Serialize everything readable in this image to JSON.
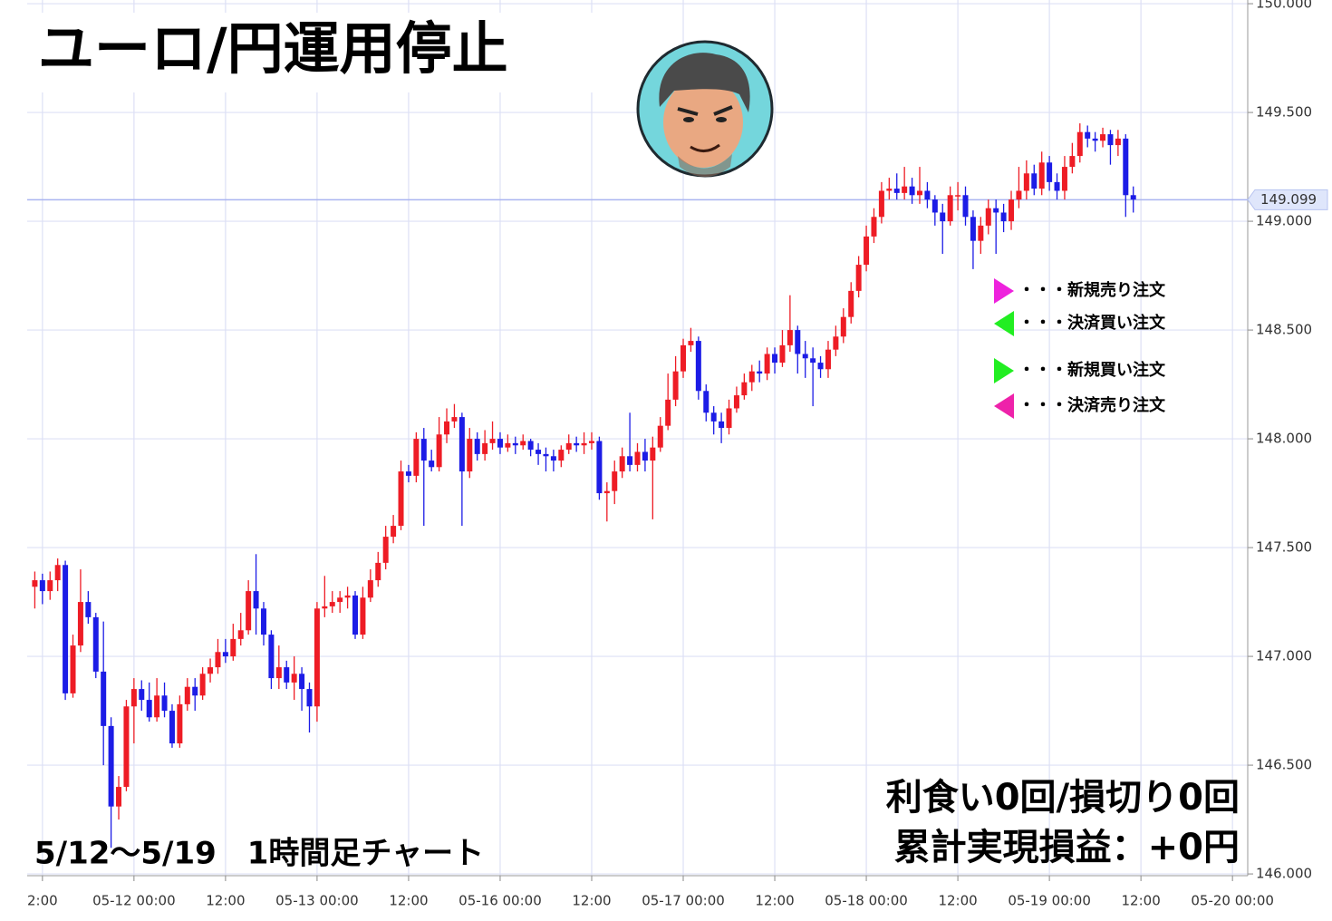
{
  "chart_data": {
    "type": "candlestick",
    "title": "ユーロ/円運用停止",
    "subtitle": "5/12～5/19　1時間足チャート",
    "summary": [
      "利食い0回/損切り0回",
      "累計実現損益：+0円"
    ],
    "legend_notes": [
      {
        "label": "・・・新規売り注文",
        "color": "#ee22dd",
        "direction": "right"
      },
      {
        "label": "・・・決済買い注文",
        "color": "#22ee22",
        "direction": "left"
      },
      {
        "label": "・・・新規買い注文",
        "color": "#22ee22",
        "direction": "right"
      },
      {
        "label": "・・・決済売り注文",
        "color": "#ee22aa",
        "direction": "left"
      }
    ],
    "up_color": "#ee1c25",
    "down_color": "#1c1ce6",
    "grid": true,
    "xlim": [
      -14,
      146
    ],
    "ylim": [
      145.992,
      150.017
    ],
    "xticks": [
      {
        "value": -12,
        "label": "2:00"
      },
      {
        "value": 0,
        "label": "05-12 00:00"
      },
      {
        "value": 12,
        "label": "12:00"
      },
      {
        "value": 24,
        "label": "05-13 00:00"
      },
      {
        "value": 36,
        "label": "12:00"
      },
      {
        "value": 48,
        "label": "05-16 00:00"
      },
      {
        "value": 60,
        "label": "12:00"
      },
      {
        "value": 72,
        "label": "05-17 00:00"
      },
      {
        "value": 84,
        "label": "12:00"
      },
      {
        "value": 96,
        "label": "05-18 00:00"
      },
      {
        "value": 108,
        "label": "12:00"
      },
      {
        "value": 120,
        "label": "05-19 00:00"
      },
      {
        "value": 132,
        "label": "12:00"
      },
      {
        "value": 144,
        "label": "05-20 00:00"
      }
    ],
    "yticks": [
      {
        "value": 146,
        "label": "146.000"
      },
      {
        "value": 146.5,
        "label": "146.500"
      },
      {
        "value": 147,
        "label": "147.000"
      },
      {
        "value": 147.5,
        "label": "147.500"
      },
      {
        "value": 148,
        "label": "148.000"
      },
      {
        "value": 148.5,
        "label": "148.500"
      },
      {
        "value": 149,
        "label": "149.000"
      },
      {
        "value": 149.5,
        "label": "149.500"
      },
      {
        "value": 150,
        "label": "150.000"
      }
    ],
    "last_price": {
      "value": 149.099,
      "label": "149.099"
    },
    "x": [
      -13,
      -12,
      -11,
      -10,
      -9,
      -8,
      -7,
      -6,
      -5,
      -4,
      -3,
      -2,
      -1,
      0,
      1,
      2,
      3,
      4,
      5,
      6,
      7,
      8,
      9,
      10,
      11,
      12,
      13,
      14,
      15,
      16,
      17,
      18,
      19,
      20,
      21,
      22,
      23,
      24,
      25,
      26,
      27,
      28,
      29,
      30,
      31,
      32,
      33,
      34,
      35,
      36,
      37,
      38,
      39,
      40,
      41,
      42,
      43,
      44,
      45,
      46,
      47,
      48,
      49,
      50,
      51,
      52,
      53,
      54,
      55,
      56,
      57,
      58,
      59,
      60,
      61,
      62,
      63,
      64,
      65,
      66,
      67,
      68,
      69,
      70,
      71,
      72,
      73,
      74,
      75,
      76,
      77,
      78,
      79,
      80,
      81,
      82,
      83,
      84,
      85,
      86,
      87,
      88,
      89,
      90,
      91,
      92,
      93,
      94,
      95,
      96,
      97,
      98,
      99,
      100,
      101,
      102,
      103,
      104,
      105,
      106,
      107,
      108,
      109,
      110,
      111,
      112,
      113,
      114,
      115,
      116,
      117,
      118,
      119,
      120,
      121,
      122,
      123,
      124,
      125,
      126,
      127,
      128,
      129,
      130,
      131
    ],
    "open": [
      147.32,
      147.35,
      147.3,
      147.35,
      147.42,
      146.83,
      147.05,
      147.25,
      147.18,
      146.93,
      146.68,
      146.31,
      146.4,
      146.77,
      146.85,
      146.8,
      146.72,
      146.82,
      146.75,
      146.6,
      146.78,
      146.86,
      146.82,
      146.92,
      146.95,
      147.02,
      147.0,
      147.08,
      147.12,
      147.3,
      147.22,
      147.1,
      146.9,
      146.95,
      146.88,
      146.92,
      146.85,
      146.77,
      147.22,
      147.23,
      147.25,
      147.27,
      147.28,
      147.1,
      147.27,
      147.35,
      147.43,
      147.55,
      147.6,
      147.85,
      147.83,
      148.0,
      147.9,
      147.87,
      148.02,
      148.08,
      148.1,
      147.85,
      148.0,
      147.93,
      147.98,
      148.0,
      147.96,
      147.98,
      147.97,
      147.99,
      147.95,
      147.93,
      147.92,
      147.9,
      147.95,
      147.98,
      147.97,
      147.98,
      147.99,
      147.75,
      147.76,
      147.85,
      147.92,
      147.88,
      147.94,
      147.9,
      147.96,
      148.06,
      148.18,
      148.31,
      148.43,
      148.45,
      148.22,
      148.12,
      148.08,
      148.05,
      148.14,
      148.2,
      148.26,
      148.31,
      148.3,
      148.39,
      148.35,
      148.43,
      148.5,
      148.39,
      148.37,
      148.35,
      148.32,
      148.41,
      148.47,
      148.56,
      148.68,
      148.8,
      148.93,
      149.02,
      149.14,
      149.15,
      149.13,
      149.16,
      149.12,
      149.14,
      149.1,
      149.04,
      149.0,
      149.12,
      149.12,
      149.02,
      148.91,
      148.98,
      149.06,
      149.04,
      149.0,
      149.1,
      149.14,
      149.22,
      149.15,
      149.27,
      149.18,
      149.14,
      149.25,
      149.3,
      149.41,
      149.38,
      149.37,
      149.4,
      149.35,
      149.38,
      149.12
    ],
    "high": [
      147.39,
      147.38,
      147.39,
      147.45,
      147.44,
      147.1,
      147.4,
      147.3,
      147.2,
      147.16,
      146.72,
      146.45,
      146.8,
      146.9,
      146.89,
      146.88,
      146.9,
      146.88,
      146.78,
      146.82,
      146.9,
      146.9,
      146.95,
      146.99,
      147.08,
      147.08,
      147.15,
      147.2,
      147.35,
      147.47,
      147.25,
      147.12,
      147.05,
      146.98,
      147.0,
      146.95,
      146.88,
      147.25,
      147.37,
      147.3,
      147.3,
      147.32,
      147.3,
      147.32,
      147.4,
      147.48,
      147.6,
      147.65,
      147.9,
      147.88,
      148.03,
      148.05,
      147.95,
      148.1,
      148.14,
      148.16,
      148.12,
      148.05,
      148.03,
      148.04,
      148.08,
      148.03,
      148.02,
      148.01,
      148.02,
      148.0,
      147.98,
      147.96,
      147.95,
      147.97,
      148.02,
      148.01,
      148.03,
      148.03,
      148.01,
      147.8,
      147.9,
      147.96,
      148.12,
      147.98,
      148.0,
      148.01,
      148.1,
      148.3,
      148.38,
      148.46,
      148.51,
      148.47,
      148.25,
      148.15,
      148.12,
      148.18,
      148.24,
      148.3,
      148.34,
      148.36,
      148.42,
      148.42,
      148.5,
      148.66,
      148.52,
      148.45,
      148.42,
      148.38,
      148.45,
      148.52,
      148.6,
      148.72,
      148.84,
      148.98,
      149.06,
      149.18,
      149.2,
      149.22,
      149.25,
      149.2,
      149.25,
      149.18,
      149.12,
      149.08,
      149.16,
      149.18,
      149.16,
      149.05,
      149.02,
      149.1,
      149.1,
      149.08,
      149.14,
      149.25,
      149.28,
      149.26,
      149.32,
      149.3,
      149.22,
      149.3,
      149.36,
      149.45,
      149.44,
      149.41,
      149.43,
      149.42,
      149.42,
      149.4,
      149.16
    ],
    "low": [
      147.22,
      147.24,
      147.26,
      147.3,
      146.8,
      146.81,
      147.02,
      147.15,
      146.9,
      146.5,
      146.12,
      146.25,
      146.38,
      146.6,
      146.75,
      146.7,
      146.7,
      146.72,
      146.58,
      146.58,
      146.75,
      146.75,
      146.8,
      146.88,
      146.92,
      146.97,
      146.98,
      147.05,
      147.1,
      147.1,
      147.05,
      146.85,
      146.85,
      146.85,
      146.8,
      146.75,
      146.65,
      146.7,
      147.18,
      147.2,
      147.2,
      147.22,
      147.08,
      147.08,
      147.25,
      147.32,
      147.4,
      147.52,
      147.58,
      147.8,
      147.8,
      147.6,
      147.85,
      147.85,
      147.98,
      148.05,
      147.6,
      147.82,
      147.9,
      147.9,
      147.95,
      147.93,
      147.94,
      147.93,
      147.95,
      147.92,
      147.88,
      147.85,
      147.85,
      147.87,
      147.93,
      147.94,
      147.93,
      147.95,
      147.72,
      147.62,
      147.7,
      147.82,
      147.85,
      147.85,
      147.85,
      147.63,
      147.94,
      148.04,
      148.15,
      148.28,
      148.4,
      148.18,
      148.08,
      148.02,
      147.98,
      148.02,
      148.12,
      148.18,
      148.22,
      148.26,
      148.27,
      148.3,
      148.33,
      148.4,
      148.3,
      148.28,
      148.15,
      148.28,
      148.28,
      148.38,
      148.44,
      148.53,
      148.65,
      148.77,
      148.9,
      148.99,
      149.1,
      149.1,
      149.1,
      149.08,
      149.08,
      149.06,
      148.98,
      148.85,
      148.98,
      149.05,
      148.98,
      148.78,
      148.85,
      148.94,
      148.85,
      148.95,
      148.96,
      149.06,
      149.1,
      149.12,
      149.12,
      149.14,
      149.1,
      149.1,
      149.22,
      149.27,
      149.34,
      149.32,
      149.34,
      149.26,
      149.3,
      149.02,
      149.04
    ],
    "close": [
      147.35,
      147.3,
      147.35,
      147.42,
      146.83,
      147.05,
      147.25,
      147.18,
      146.93,
      146.68,
      146.31,
      146.4,
      146.77,
      146.85,
      146.8,
      146.72,
      146.82,
      146.75,
      146.6,
      146.78,
      146.86,
      146.82,
      146.92,
      146.95,
      147.02,
      147.0,
      147.08,
      147.12,
      147.3,
      147.22,
      147.1,
      146.9,
      146.95,
      146.88,
      146.92,
      146.85,
      146.77,
      147.22,
      147.23,
      147.25,
      147.27,
      147.28,
      147.1,
      147.27,
      147.35,
      147.43,
      147.55,
      147.6,
      147.85,
      147.83,
      148.0,
      147.9,
      147.87,
      148.02,
      148.08,
      148.1,
      147.85,
      148.0,
      147.93,
      147.98,
      148.0,
      147.96,
      147.98,
      147.97,
      147.99,
      147.95,
      147.93,
      147.92,
      147.9,
      147.95,
      147.98,
      147.97,
      147.98,
      147.99,
      147.75,
      147.76,
      147.85,
      147.92,
      147.88,
      147.94,
      147.9,
      147.96,
      148.06,
      148.18,
      148.31,
      148.43,
      148.45,
      148.22,
      148.12,
      148.08,
      148.05,
      148.14,
      148.2,
      148.26,
      148.31,
      148.3,
      148.39,
      148.35,
      148.43,
      148.5,
      148.39,
      148.37,
      148.35,
      148.32,
      148.41,
      148.47,
      148.56,
      148.68,
      148.8,
      148.93,
      149.02,
      149.14,
      149.15,
      149.13,
      149.16,
      149.12,
      149.14,
      149.1,
      149.04,
      149.0,
      149.12,
      149.12,
      149.02,
      148.91,
      148.98,
      149.06,
      149.04,
      149.0,
      149.1,
      149.14,
      149.22,
      149.15,
      149.27,
      149.18,
      149.14,
      149.25,
      149.3,
      149.41,
      149.38,
      149.37,
      149.4,
      149.35,
      149.38,
      149.12,
      149.1
    ]
  }
}
